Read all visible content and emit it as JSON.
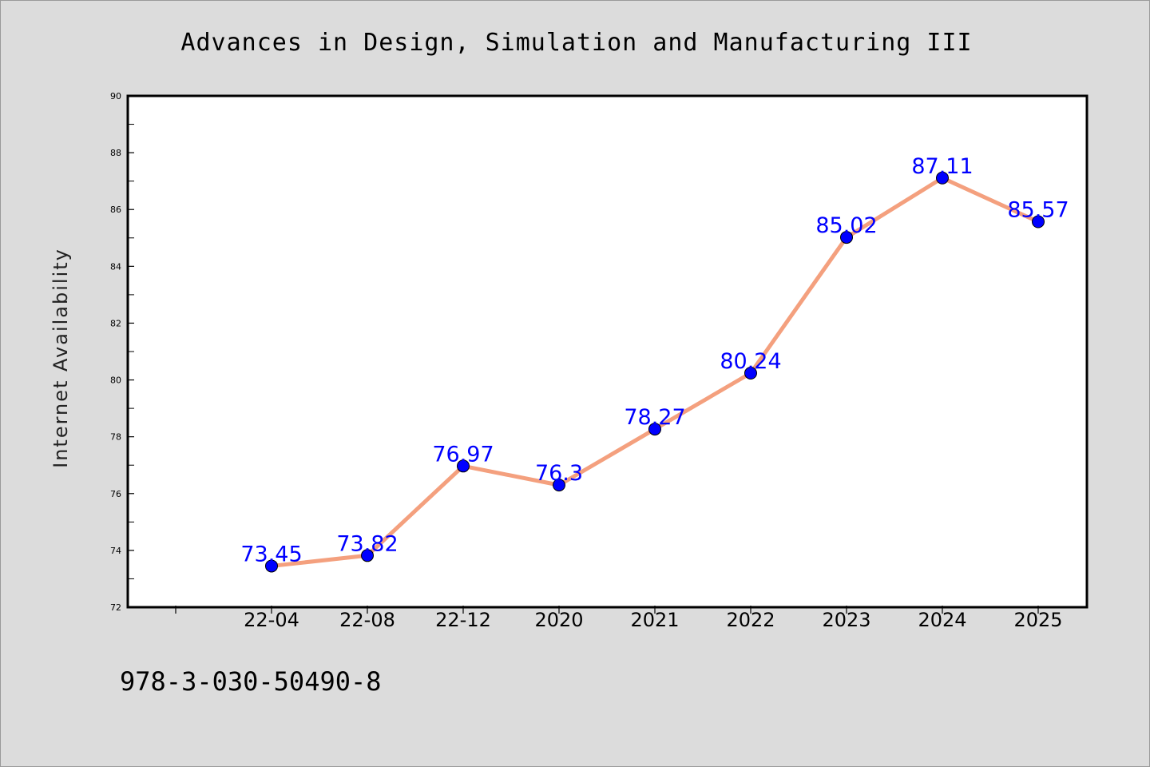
{
  "chart_data": {
    "type": "line",
    "title": "Advances in Design, Simulation and Manufacturing III",
    "xlabel": "",
    "ylabel": "Internet Availability",
    "categories": [
      "22-04",
      "22-08",
      "22-12",
      "2020",
      "2021",
      "2022",
      "2023",
      "2024",
      "2025"
    ],
    "series": [
      {
        "values": [
          73.45,
          73.82,
          76.97,
          76.3,
          78.27,
          80.24,
          85.02,
          87.11,
          85.57
        ],
        "labels": [
          "73.45",
          "73.82",
          "76.97",
          "76.3",
          "78.27",
          "80.24",
          "85.02",
          "87.11",
          "85.57"
        ],
        "line_color": "#f4a07e",
        "marker_color": "#0000ff"
      }
    ],
    "ylim": [
      72,
      90
    ],
    "yticks": [
      "72",
      "74",
      "76",
      "78",
      "80",
      "82",
      "84",
      "86",
      "88",
      "90"
    ],
    "grid": false,
    "legend": "none",
    "data_label_color": "#0000ff"
  },
  "footer": {
    "isbn": "978-3-030-50490-8"
  }
}
